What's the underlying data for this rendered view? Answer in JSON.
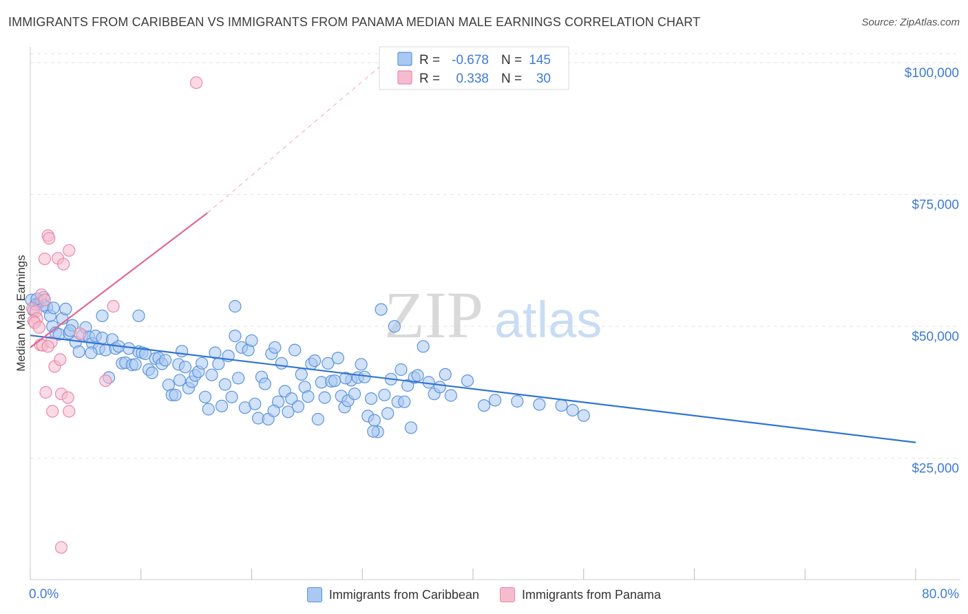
{
  "title": "IMMIGRANTS FROM CARIBBEAN VS IMMIGRANTS FROM PANAMA MEDIAN MALE EARNINGS CORRELATION CHART",
  "source": "Source: ZipAtlas.com",
  "colors": {
    "blue_fill": "#a9c8f2",
    "blue_stroke": "#5b93dc",
    "blue_line": "#2f73d4",
    "pink_fill": "#f6bccd",
    "pink_stroke": "#e88aa8",
    "pink_line": "#e0678f",
    "axis_label": "#3d7bd6",
    "grid": "#e2e2e2"
  },
  "watermark": {
    "zip": "ZIP",
    "atlas": "atlas"
  },
  "stats_legend": {
    "rows": [
      {
        "r_label": "R =",
        "r_value": "-0.678",
        "n_label": "N =",
        "n_value": "145"
      },
      {
        "r_label": "R =",
        "r_value": "0.338",
        "n_label": "N =",
        "n_value": "30"
      }
    ]
  },
  "chart_data": {
    "type": "scatter",
    "title": "IMMIGRANTS FROM CARIBBEAN VS IMMIGRANTS FROM PANAMA MEDIAN MALE EARNINGS CORRELATION CHART",
    "xlabel": "",
    "ylabel": "Median Male Earnings",
    "xlim": [
      0,
      80
    ],
    "ylim": [
      2000,
      103000
    ],
    "x_tick_labels": [
      "0.0%",
      "80.0%"
    ],
    "y_ticks": [
      {
        "value": 25000,
        "label": "$25,000"
      },
      {
        "value": 50000,
        "label": "$50,000"
      },
      {
        "value": 75000,
        "label": "$75,000"
      },
      {
        "value": 100000,
        "label": "$100,000"
      }
    ],
    "series": [
      {
        "name": "Immigrants from Caribbean",
        "color": "blue",
        "r": -0.678,
        "n": 145,
        "trend": {
          "x0": 0,
          "y0": 48300,
          "x1": 80,
          "y1": 28000,
          "dashed_to": null
        },
        "points": [
          [
            0.1,
            55000
          ],
          [
            0.3,
            53000
          ],
          [
            0.5,
            54200
          ],
          [
            0.8,
            54500
          ],
          [
            1.0,
            54800
          ],
          [
            1.2,
            55500
          ],
          [
            1.5,
            53600
          ],
          [
            1.8,
            52000
          ],
          [
            2.0,
            50000
          ],
          [
            2.3,
            48800
          ],
          [
            2.6,
            48500
          ],
          [
            2.9,
            51500
          ],
          [
            3.2,
            53300
          ],
          [
            3.5,
            48700
          ],
          [
            3.8,
            50200
          ],
          [
            4.1,
            47000
          ],
          [
            4.4,
            45200
          ],
          [
            4.7,
            48300
          ],
          [
            5.0,
            49800
          ],
          [
            5.3,
            48000
          ],
          [
            5.6,
            46800
          ],
          [
            5.9,
            48200
          ],
          [
            6.2,
            45800
          ],
          [
            6.5,
            47800
          ],
          [
            6.8,
            45500
          ],
          [
            7.1,
            40300
          ],
          [
            7.4,
            47500
          ],
          [
            7.7,
            45800
          ],
          [
            8.0,
            46200
          ],
          [
            8.3,
            43000
          ],
          [
            8.6,
            43100
          ],
          [
            8.9,
            45800
          ],
          [
            9.2,
            42700
          ],
          [
            9.5,
            42800
          ],
          [
            9.8,
            45200
          ],
          [
            10.1,
            45000
          ],
          [
            10.4,
            44800
          ],
          [
            10.7,
            41800
          ],
          [
            11.0,
            41200
          ],
          [
            11.3,
            43900
          ],
          [
            11.6,
            44000
          ],
          [
            11.9,
            42900
          ],
          [
            12.2,
            43600
          ],
          [
            12.5,
            38900
          ],
          [
            12.8,
            37000
          ],
          [
            13.1,
            37000
          ],
          [
            13.4,
            42800
          ],
          [
            13.7,
            45300
          ],
          [
            14.0,
            42300
          ],
          [
            14.3,
            38300
          ],
          [
            14.6,
            39500
          ],
          [
            14.9,
            40700
          ],
          [
            15.2,
            41400
          ],
          [
            15.5,
            43000
          ],
          [
            15.8,
            36600
          ],
          [
            16.1,
            34300
          ],
          [
            16.4,
            40800
          ],
          [
            16.7,
            45000
          ],
          [
            17.0,
            42900
          ],
          [
            17.3,
            34900
          ],
          [
            17.6,
            39000
          ],
          [
            17.9,
            44400
          ],
          [
            18.2,
            36600
          ],
          [
            18.5,
            48200
          ],
          [
            18.8,
            40200
          ],
          [
            19.1,
            46000
          ],
          [
            19.4,
            34600
          ],
          [
            19.7,
            45500
          ],
          [
            20.0,
            47300
          ],
          [
            20.3,
            35300
          ],
          [
            20.6,
            32600
          ],
          [
            20.9,
            40400
          ],
          [
            21.2,
            39100
          ],
          [
            21.5,
            32400
          ],
          [
            21.8,
            44800
          ],
          [
            22.1,
            46000
          ],
          [
            22.4,
            35700
          ],
          [
            22.7,
            43000
          ],
          [
            23.0,
            37700
          ],
          [
            23.3,
            33800
          ],
          [
            23.6,
            36300
          ],
          [
            23.9,
            45500
          ],
          [
            24.2,
            34800
          ],
          [
            24.5,
            40900
          ],
          [
            24.8,
            38500
          ],
          [
            25.1,
            36700
          ],
          [
            25.4,
            42900
          ],
          [
            25.7,
            43500
          ],
          [
            26.0,
            32400
          ],
          [
            26.3,
            39400
          ],
          [
            26.6,
            36500
          ],
          [
            26.9,
            43000
          ],
          [
            27.2,
            39600
          ],
          [
            27.5,
            39700
          ],
          [
            27.8,
            44000
          ],
          [
            28.1,
            36800
          ],
          [
            28.4,
            34700
          ],
          [
            28.7,
            35900
          ],
          [
            29.0,
            39800
          ],
          [
            29.3,
            37200
          ],
          [
            29.6,
            40300
          ],
          [
            29.9,
            42800
          ],
          [
            30.2,
            40400
          ],
          [
            30.5,
            33000
          ],
          [
            30.8,
            36300
          ],
          [
            31.1,
            32200
          ],
          [
            31.4,
            30000
          ],
          [
            31.7,
            53200
          ],
          [
            32.0,
            37000
          ],
          [
            32.3,
            33500
          ],
          [
            32.6,
            40000
          ],
          [
            32.9,
            50000
          ],
          [
            33.2,
            35700
          ],
          [
            33.5,
            41800
          ],
          [
            33.8,
            35700
          ],
          [
            34.1,
            38800
          ],
          [
            34.4,
            30800
          ],
          [
            34.7,
            40300
          ],
          [
            35.5,
            46200
          ],
          [
            36.0,
            39400
          ],
          [
            36.5,
            37200
          ],
          [
            37.0,
            38500
          ],
          [
            37.5,
            40900
          ],
          [
            38.0,
            36900
          ],
          [
            39.5,
            39700
          ],
          [
            41.0,
            35000
          ],
          [
            42.0,
            36000
          ],
          [
            44.0,
            35800
          ],
          [
            46.0,
            35200
          ],
          [
            48.0,
            35000
          ],
          [
            49.0,
            34100
          ],
          [
            50.0,
            33100
          ],
          [
            6.5,
            52000
          ],
          [
            9.8,
            52000
          ],
          [
            18.5,
            53800
          ],
          [
            1.2,
            54000
          ],
          [
            0.6,
            55200
          ],
          [
            3.6,
            49200
          ],
          [
            2.1,
            53500
          ],
          [
            28.5,
            40200
          ],
          [
            13.5,
            39800
          ],
          [
            22.0,
            34000
          ],
          [
            31.0,
            30100
          ],
          [
            35.0,
            40700
          ],
          [
            5.5,
            45000
          ]
        ]
      },
      {
        "name": "Immigrants from Panama",
        "color": "pink",
        "r": 0.338,
        "n": 30,
        "trend": {
          "x0": 0,
          "y0": 46000,
          "x1": 16,
          "y1": 71500,
          "dashed_to": {
            "x": 32,
            "y": 100000
          }
        },
        "points": [
          [
            1.6,
            67200
          ],
          [
            1.7,
            66700
          ],
          [
            3.5,
            64400
          ],
          [
            1.3,
            62800
          ],
          [
            2.5,
            62900
          ],
          [
            3.0,
            61800
          ],
          [
            1.0,
            56000
          ],
          [
            1.3,
            55000
          ],
          [
            0.2,
            53400
          ],
          [
            0.5,
            52800
          ],
          [
            0.6,
            51500
          ],
          [
            0.3,
            51000
          ],
          [
            0.4,
            50700
          ],
          [
            0.8,
            49800
          ],
          [
            0.9,
            46500
          ],
          [
            1.1,
            46400
          ],
          [
            1.9,
            47000
          ],
          [
            2.2,
            42400
          ],
          [
            2.7,
            43700
          ],
          [
            1.4,
            37500
          ],
          [
            2.8,
            37200
          ],
          [
            3.4,
            36500
          ],
          [
            2.0,
            33900
          ],
          [
            3.5,
            33900
          ],
          [
            7.5,
            53800
          ],
          [
            4.5,
            48600
          ],
          [
            15.0,
            96200
          ],
          [
            6.8,
            39700
          ],
          [
            2.8,
            8100
          ],
          [
            1.6,
            46200
          ]
        ]
      }
    ],
    "legend": [
      "Immigrants from Caribbean",
      "Immigrants from Panama"
    ]
  }
}
